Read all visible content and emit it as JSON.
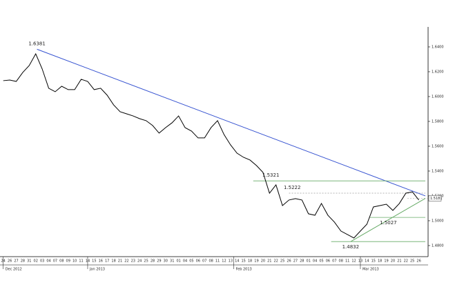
{
  "chart_data": {
    "type": "line",
    "categories": [
      "24",
      "26",
      "27",
      "28",
      "31",
      "02",
      "03",
      "04",
      "07",
      "08",
      "09",
      "10",
      "11",
      "14",
      "15",
      "16",
      "17",
      "18",
      "21",
      "22",
      "23",
      "24",
      "25",
      "28",
      "29",
      "30",
      "31",
      "01",
      "04",
      "05",
      "06",
      "07",
      "08",
      "11",
      "12",
      "13",
      "14",
      "15",
      "18",
      "19",
      "20",
      "21",
      "22",
      "25",
      "26",
      "27",
      "28",
      "01",
      "04",
      "05",
      "06",
      "07",
      "08",
      "11",
      "12",
      "13",
      "14",
      "15",
      "18",
      "19",
      "20",
      "21",
      "22",
      "25",
      "26"
    ],
    "series": [
      {
        "color": "#000000",
        "values": [
          1.6128,
          1.6133,
          1.6122,
          1.6194,
          1.625,
          1.6344,
          1.6222,
          1.6067,
          1.6039,
          1.6083,
          1.6056,
          1.6056,
          1.6139,
          1.6122,
          1.6056,
          1.6067,
          1.6011,
          1.5933,
          1.5878,
          1.5861,
          1.5844,
          1.5822,
          1.5806,
          1.5767,
          1.5706,
          1.575,
          1.5789,
          1.5844,
          1.575,
          1.5722,
          1.5667,
          1.5667,
          1.575,
          1.5806,
          1.5694,
          1.5611,
          1.5544,
          1.5511,
          1.5489,
          1.5444,
          1.5389,
          1.5222,
          1.5289,
          1.5122,
          1.5167,
          1.5178,
          1.5167,
          1.5056,
          1.5044,
          1.5139,
          1.5044,
          1.4989,
          1.4917,
          1.4889,
          1.4861,
          1.4917,
          1.4972,
          1.5111,
          1.5122,
          1.5133,
          1.5083,
          1.5139,
          1.5222,
          1.5233,
          1.5167
        ]
      }
    ],
    "xlim": [
      -0.5,
      65
    ],
    "xticks": [
      {
        "value": 0,
        "label": "Dec 2012"
      },
      {
        "value": 13,
        "label": "Jan 2013"
      },
      {
        "value": 35.5,
        "label": "Feb 2013"
      },
      {
        "value": 55,
        "label": "Mar 2013"
      }
    ],
    "ylim": [
      1.4722,
      1.6561
    ],
    "yticks": [
      {
        "value": 1.48,
        "label": "1.4800"
      },
      {
        "value": 1.5,
        "label": "1.5000"
      },
      {
        "value": 1.52,
        "label": "1.5200"
      },
      {
        "value": 1.54,
        "label": "1.5400"
      },
      {
        "value": 1.56,
        "label": "1.5600"
      },
      {
        "value": 1.58,
        "label": "1.5800"
      },
      {
        "value": 1.6,
        "label": "1.6000"
      },
      {
        "value": 1.62,
        "label": "1.6200"
      },
      {
        "value": 1.64,
        "label": "1.6400"
      }
    ],
    "last_price": 1.5181,
    "annotations": [
      {
        "value": 1.6381,
        "x": 5.2,
        "position": "above"
      },
      {
        "value": 1.5321,
        "x": 41.2,
        "position": "above",
        "level_from": 38.5,
        "level_color": "#66aa66"
      },
      {
        "value": 1.5222,
        "x": 44.5,
        "position": "above",
        "level_from": 44,
        "level_color": "#999999"
      },
      {
        "value": 1.4832,
        "x": 53.5,
        "position": "below",
        "level_from": 50.5,
        "level_color": "#66aa66"
      },
      {
        "value": 1.5027,
        "x": 59.3,
        "position": "below",
        "level_from": 56.4,
        "level_color": "#66aa66"
      }
    ],
    "trendlines": [
      {
        "color": "#3350d0",
        "points": [
          [
            5.2,
            1.6381
          ],
          [
            65,
            1.52
          ]
        ]
      },
      {
        "color": "#66aa66",
        "points": [
          [
            53.5,
            1.4832
          ],
          [
            65,
            1.518
          ]
        ]
      }
    ]
  }
}
